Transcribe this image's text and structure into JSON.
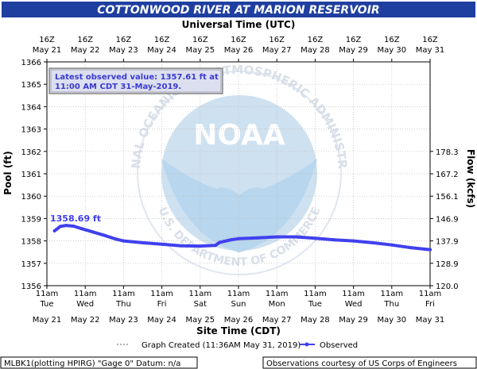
{
  "title": "COTTONWOOD RIVER AT MARION RESERVOIR",
  "top_axis_title": "Universal Time (UTC)",
  "bottom_axis_title": "Site Time (CDT)",
  "left_axis_title": "Pool (ft)",
  "right_axis_title": "Flow (kcfs)",
  "latest_box": {
    "line1": "Latest observed value: 1357.61 ft at",
    "line2": "11:00 AM CDT 31-May-2019."
  },
  "peak_label": "1358.69 ft",
  "legend": {
    "created_label": "Graph Created (11:36AM May 31, 2019)",
    "observed_label": "Observed"
  },
  "footer": {
    "left": "MLBK1(plotting HPIRG) \"Gage 0\" Datum: n/a",
    "right": "Observations courtesy of US Corps of Engineers"
  },
  "watermark": {
    "center": "NOAA",
    "ring": "NATIONAL OCEANIC AND ATMOSPHERIC ADMINISTRATION",
    "bottom": "U.S. DEPARTMENT OF COMMERCE"
  },
  "colors": {
    "title_bg": "#1f3fa0",
    "series": "#4040ee",
    "grid": "#bbbbbb",
    "latest_box_bg": "#dcdff0"
  },
  "chart_data": {
    "type": "line",
    "title": "COTTONWOOD RIVER AT MARION RESERVOIR",
    "ylabel": "Pool (ft)",
    "y2label": "Flow (kcfs)",
    "ylim": [
      1356,
      1366
    ],
    "y_ticks": [
      "1356",
      "1357",
      "1358",
      "1359",
      "1360",
      "1361",
      "1362",
      "1363",
      "1364",
      "1365",
      "1366"
    ],
    "y2_ticks": [
      "120.0",
      "128.9",
      "137.9",
      "146.9",
      "156.1",
      "167.2",
      "178.3"
    ],
    "y2_tick_pool_levels": [
      1356,
      1357,
      1358,
      1359,
      1360,
      1361,
      1362
    ],
    "xlim_days": [
      21,
      31
    ],
    "bottom_ticks": [
      {
        "time": "11am",
        "dow": "Tue",
        "date": "May 21"
      },
      {
        "time": "11am",
        "dow": "Wed",
        "date": "May 22"
      },
      {
        "time": "11am",
        "dow": "Thu",
        "date": "May 23"
      },
      {
        "time": "11am",
        "dow": "Fri",
        "date": "May 24"
      },
      {
        "time": "11am",
        "dow": "Sat",
        "date": "May 25"
      },
      {
        "time": "11am",
        "dow": "Sun",
        "date": "May 26"
      },
      {
        "time": "11am",
        "dow": "Mon",
        "date": "May 27"
      },
      {
        "time": "11am",
        "dow": "Tue",
        "date": "May 28"
      },
      {
        "time": "11am",
        "dow": "Wed",
        "date": "May 29"
      },
      {
        "time": "11am",
        "dow": "Thu",
        "date": "May 30"
      },
      {
        "time": "11am",
        "dow": "Fri",
        "date": "May 31"
      }
    ],
    "top_ticks": [
      {
        "time": "16Z",
        "date": "May 21"
      },
      {
        "time": "16Z",
        "date": "May 22"
      },
      {
        "time": "16Z",
        "date": "May 23"
      },
      {
        "time": "16Z",
        "date": "May 24"
      },
      {
        "time": "16Z",
        "date": "May 25"
      },
      {
        "time": "16Z",
        "date": "May 26"
      },
      {
        "time": "16Z",
        "date": "May 27"
      },
      {
        "time": "16Z",
        "date": "May 28"
      },
      {
        "time": "16Z",
        "date": "May 29"
      },
      {
        "time": "16Z",
        "date": "May 30"
      },
      {
        "time": "16Z",
        "date": "May 31"
      }
    ],
    "series": [
      {
        "name": "Observed",
        "x_day": [
          21.2,
          21.35,
          21.5,
          21.7,
          21.9,
          22.2,
          22.5,
          22.8,
          23.0,
          23.5,
          24.0,
          24.5,
          25.0,
          25.4,
          25.5,
          25.8,
          26.0,
          26.5,
          27.0,
          27.5,
          28.0,
          28.5,
          29.0,
          29.5,
          30.0,
          30.5,
          31.0
        ],
        "y": [
          1358.45,
          1358.65,
          1358.69,
          1358.66,
          1358.55,
          1358.4,
          1358.25,
          1358.08,
          1358.0,
          1357.92,
          1357.85,
          1357.78,
          1357.77,
          1357.8,
          1357.93,
          1358.05,
          1358.1,
          1358.14,
          1358.18,
          1358.18,
          1358.12,
          1358.05,
          1358.0,
          1357.92,
          1357.82,
          1357.7,
          1357.61
        ]
      }
    ],
    "grid": true,
    "legend": "bottom-center"
  }
}
